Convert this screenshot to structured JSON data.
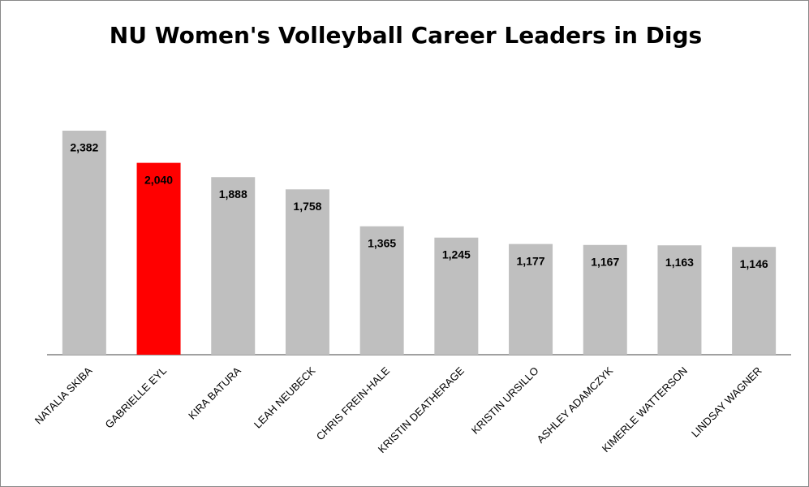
{
  "chart_data": {
    "type": "bar",
    "title": "NU Women's Volleyball Career Leaders in Digs",
    "categories": [
      "NATALIA SKIBA",
      "GABRIELLE EYL",
      "KIRA BATURA",
      "LEAH NEUBECK",
      "CHRIS FREIN-HALE",
      "KRISTIN DEATHERAGE",
      "KRISTIN URSILLO",
      "ASHLEY ADAMCZYK",
      "KIMERLE WATTERSON",
      "LINDSAY WAGNER"
    ],
    "values": [
      2382,
      2040,
      1888,
      1758,
      1365,
      1245,
      1177,
      1167,
      1163,
      1146
    ],
    "value_labels": [
      "2,382",
      "2,040",
      "1,888",
      "1,758",
      "1,365",
      "1,245",
      "1,177",
      "1,167",
      "1,163",
      "1,146"
    ],
    "colors": [
      "#bfbfbf",
      "#ff0000",
      "#bfbfbf",
      "#bfbfbf",
      "#bfbfbf",
      "#bfbfbf",
      "#bfbfbf",
      "#bfbfbf",
      "#bfbfbf",
      "#bfbfbf"
    ]
  }
}
